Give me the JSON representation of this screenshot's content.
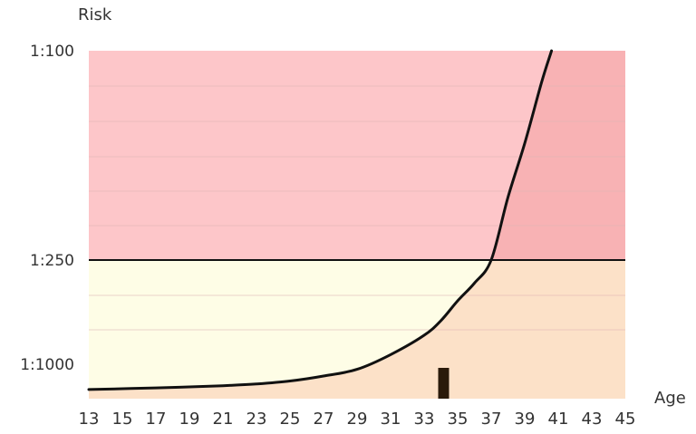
{
  "chart_data": {
    "type": "line",
    "title": "",
    "xlabel": "Age",
    "ylabel": "Risk",
    "x_ticks": [
      13,
      15,
      17,
      19,
      21,
      23,
      25,
      27,
      29,
      31,
      33,
      35,
      37,
      39,
      41,
      43,
      45
    ],
    "xlim": [
      13,
      45
    ],
    "y_ticks": [
      {
        "label": "1:100",
        "risk_denominator": 100
      },
      {
        "label": "1:250",
        "risk_denominator": 250
      },
      {
        "label": "1:1000",
        "risk_denominator": 1000
      }
    ],
    "threshold": {
      "label": "1:250",
      "risk_denominator": 250
    },
    "series": [
      {
        "points": [
          {
            "x": 13,
            "risk_denominator": 1400
          },
          {
            "x": 17,
            "risk_denominator": 1370
          },
          {
            "x": 21,
            "risk_denominator": 1330
          },
          {
            "x": 23,
            "risk_denominator": 1300
          },
          {
            "x": 25,
            "risk_denominator": 1250
          },
          {
            "x": 27,
            "risk_denominator": 1170
          },
          {
            "x": 29,
            "risk_denominator": 1070
          },
          {
            "x": 31,
            "risk_denominator": 880
          },
          {
            "x": 33,
            "risk_denominator": 680
          },
          {
            "x": 34,
            "risk_denominator": 560
          },
          {
            "x": 35,
            "risk_denominator": 430
          },
          {
            "x": 36,
            "risk_denominator": 340
          },
          {
            "x": 37,
            "risk_denominator": 250
          },
          {
            "x": 38,
            "risk_denominator": 190
          },
          {
            "x": 39,
            "risk_denominator": 150
          },
          {
            "x": 40,
            "risk_denominator": 115
          },
          {
            "x": 40.6,
            "risk_denominator": 100
          }
        ]
      }
    ],
    "marker": {
      "x": 34,
      "risk_denominator": 1000
    },
    "colors": {
      "high_risk_band": "#fdc6c9",
      "high_risk_after_cross": "#f8b2b4",
      "low_risk_band": "#fefde6",
      "low_risk_after_cross": "#fce1c8",
      "curve": "#111111",
      "threshold_line": "#111111",
      "marker": "#2a1a0a",
      "grid": "#e0b6b6"
    }
  }
}
